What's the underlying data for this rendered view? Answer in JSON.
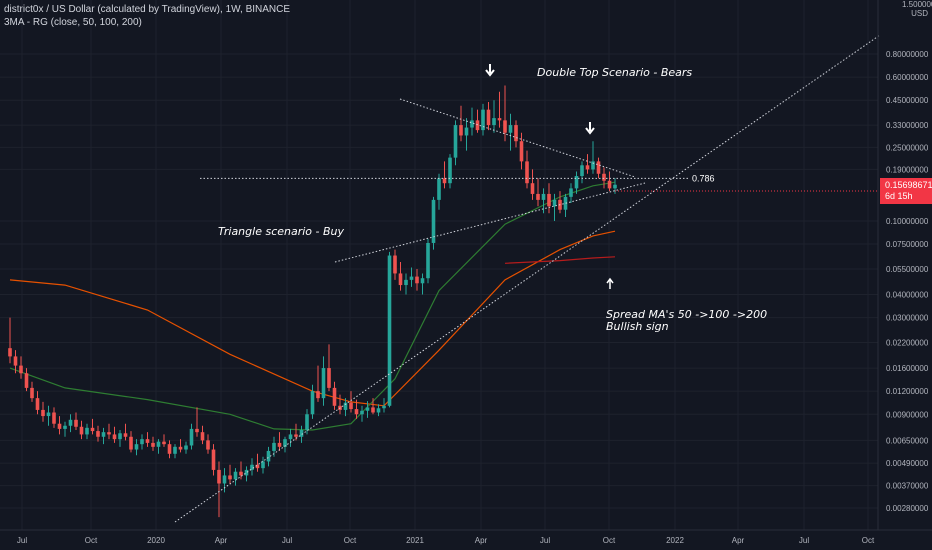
{
  "header": {
    "title": "district0x / US Dollar (calculated by TradingView), 1W, BINANCE",
    "indicator": "3MA - RG (close, 50, 100, 200)"
  },
  "price_scale": {
    "top_value": "1.50000000",
    "unit": "USD",
    "current_price": "0.15698671",
    "countdown": "6d 15h"
  },
  "annotations": {
    "double_top": "Double Top Scenario - Bears",
    "triangle": "Triangle scenario - Buy",
    "spread_line1": "Spread MA's 50 ->100 ->200",
    "spread_line2": "Bullish sign",
    "fib_level": "0.786"
  },
  "colors": {
    "background": "#131722",
    "up_candle": "#26a69a",
    "down_candle": "#ef5350",
    "ma50": "#2e7d32",
    "ma100": "#e65100",
    "ma200": "#b71c1c",
    "price_tag": "#f23645"
  },
  "chart_data": {
    "type": "candlestick",
    "scale": "log",
    "interval": "1W",
    "y_ticks": [
      "0.80000000",
      "0.60000000",
      "0.45000000",
      "0.33000000",
      "0.25000000",
      "0.19000000",
      "0.10000000",
      "0.07500000",
      "0.05500000",
      "0.04000000",
      "0.03000000",
      "0.02200000",
      "0.01600000",
      "0.01200000",
      "0.00900000",
      "0.00650000",
      "0.00490000",
      "0.00370000",
      "0.00280000"
    ],
    "x_ticks": [
      "Jul",
      "Oct",
      "2020",
      "Apr",
      "Jul",
      "Oct",
      "2021",
      "Apr",
      "Jul",
      "Oct",
      "2022",
      "Apr",
      "Jul",
      "Oct"
    ],
    "candles": [
      [
        0.0205,
        0.03,
        0.017,
        0.0185
      ],
      [
        0.0185,
        0.02,
        0.015,
        0.0165
      ],
      [
        0.0165,
        0.0185,
        0.014,
        0.015
      ],
      [
        0.015,
        0.016,
        0.012,
        0.0125
      ],
      [
        0.0125,
        0.0135,
        0.0105,
        0.011
      ],
      [
        0.011,
        0.012,
        0.009,
        0.0095
      ],
      [
        0.0095,
        0.0105,
        0.0082,
        0.0088
      ],
      [
        0.0088,
        0.01,
        0.0078,
        0.0092
      ],
      [
        0.0092,
        0.0098,
        0.0076,
        0.008
      ],
      [
        0.008,
        0.0088,
        0.007,
        0.0075
      ],
      [
        0.0075,
        0.0082,
        0.0068,
        0.0078
      ],
      [
        0.0078,
        0.009,
        0.0072,
        0.0084
      ],
      [
        0.0084,
        0.0092,
        0.0074,
        0.0077
      ],
      [
        0.0077,
        0.0083,
        0.0066,
        0.007
      ],
      [
        0.007,
        0.008,
        0.0066,
        0.0076
      ],
      [
        0.0076,
        0.0085,
        0.007,
        0.0073
      ],
      [
        0.0073,
        0.0078,
        0.0064,
        0.0068
      ],
      [
        0.0068,
        0.0076,
        0.0062,
        0.0072
      ],
      [
        0.0072,
        0.008,
        0.0066,
        0.007
      ],
      [
        0.007,
        0.0077,
        0.0063,
        0.0066
      ],
      [
        0.0066,
        0.0074,
        0.006,
        0.0071
      ],
      [
        0.0071,
        0.008,
        0.0065,
        0.0068
      ],
      [
        0.0068,
        0.0073,
        0.0056,
        0.0058
      ],
      [
        0.0058,
        0.0066,
        0.0054,
        0.0062
      ],
      [
        0.0062,
        0.007,
        0.0058,
        0.0066
      ],
      [
        0.0066,
        0.0072,
        0.006,
        0.0063
      ],
      [
        0.0063,
        0.0068,
        0.0057,
        0.006
      ],
      [
        0.006,
        0.0066,
        0.0055,
        0.0064
      ],
      [
        0.0064,
        0.007,
        0.006,
        0.0062
      ],
      [
        0.0062,
        0.0065,
        0.0052,
        0.0055
      ],
      [
        0.0055,
        0.0062,
        0.0052,
        0.006
      ],
      [
        0.006,
        0.0066,
        0.0056,
        0.0058
      ],
      [
        0.0058,
        0.0064,
        0.0055,
        0.0061
      ],
      [
        0.0061,
        0.008,
        0.0058,
        0.0075
      ],
      [
        0.0075,
        0.0098,
        0.0068,
        0.0072
      ],
      [
        0.0072,
        0.0078,
        0.0062,
        0.0065
      ],
      [
        0.0065,
        0.007,
        0.0055,
        0.0058
      ],
      [
        0.0058,
        0.0062,
        0.0042,
        0.0045
      ],
      [
        0.0045,
        0.005,
        0.0025,
        0.0038
      ],
      [
        0.0038,
        0.0046,
        0.0034,
        0.0042
      ],
      [
        0.0042,
        0.0048,
        0.0038,
        0.004
      ],
      [
        0.004,
        0.0046,
        0.0037,
        0.0044
      ],
      [
        0.0044,
        0.005,
        0.004,
        0.0042
      ],
      [
        0.0042,
        0.0047,
        0.0039,
        0.0045
      ],
      [
        0.0045,
        0.0052,
        0.0042,
        0.0048
      ],
      [
        0.0048,
        0.0055,
        0.0044,
        0.0046
      ],
      [
        0.0046,
        0.0053,
        0.0043,
        0.005
      ],
      [
        0.005,
        0.006,
        0.0047,
        0.0057
      ],
      [
        0.0057,
        0.0068,
        0.0053,
        0.0063
      ],
      [
        0.0063,
        0.0072,
        0.0057,
        0.006
      ],
      [
        0.006,
        0.0068,
        0.0056,
        0.0066
      ],
      [
        0.0066,
        0.0075,
        0.006,
        0.007
      ],
      [
        0.007,
        0.008,
        0.0065,
        0.0068
      ],
      [
        0.0068,
        0.0078,
        0.0063,
        0.0074
      ],
      [
        0.0074,
        0.0096,
        0.007,
        0.009
      ],
      [
        0.009,
        0.013,
        0.0085,
        0.012
      ],
      [
        0.012,
        0.0165,
        0.0105,
        0.011
      ],
      [
        0.011,
        0.0185,
        0.01,
        0.016
      ],
      [
        0.016,
        0.0215,
        0.012,
        0.0125
      ],
      [
        0.0125,
        0.0135,
        0.0095,
        0.01
      ],
      [
        0.01,
        0.0115,
        0.009,
        0.0095
      ],
      [
        0.0095,
        0.011,
        0.0088,
        0.0104
      ],
      [
        0.0104,
        0.012,
        0.0092,
        0.0096
      ],
      [
        0.0096,
        0.0108,
        0.0085,
        0.009
      ],
      [
        0.009,
        0.01,
        0.0082,
        0.0094
      ],
      [
        0.0094,
        0.0106,
        0.0086,
        0.0098
      ],
      [
        0.0098,
        0.011,
        0.009,
        0.0092
      ],
      [
        0.0092,
        0.0102,
        0.0088,
        0.0097
      ],
      [
        0.0097,
        0.011,
        0.0092,
        0.01
      ],
      [
        0.01,
        0.068,
        0.0098,
        0.065
      ],
      [
        0.065,
        0.07,
        0.048,
        0.052
      ],
      [
        0.052,
        0.06,
        0.042,
        0.045
      ],
      [
        0.045,
        0.052,
        0.04,
        0.048
      ],
      [
        0.048,
        0.056,
        0.044,
        0.05
      ],
      [
        0.05,
        0.055,
        0.042,
        0.046
      ],
      [
        0.046,
        0.052,
        0.04,
        0.049
      ],
      [
        0.049,
        0.08,
        0.046,
        0.076
      ],
      [
        0.076,
        0.135,
        0.07,
        0.13
      ],
      [
        0.13,
        0.18,
        0.115,
        0.17
      ],
      [
        0.17,
        0.21,
        0.15,
        0.16
      ],
      [
        0.16,
        0.23,
        0.15,
        0.22
      ],
      [
        0.22,
        0.35,
        0.2,
        0.33
      ],
      [
        0.33,
        0.42,
        0.27,
        0.29
      ],
      [
        0.29,
        0.36,
        0.24,
        0.32
      ],
      [
        0.32,
        0.41,
        0.29,
        0.35
      ],
      [
        0.35,
        0.4,
        0.3,
        0.31
      ],
      [
        0.31,
        0.43,
        0.29,
        0.4
      ],
      [
        0.4,
        0.44,
        0.31,
        0.33
      ],
      [
        0.33,
        0.45,
        0.3,
        0.36
      ],
      [
        0.36,
        0.5,
        0.32,
        0.35
      ],
      [
        0.35,
        0.54,
        0.27,
        0.3
      ],
      [
        0.3,
        0.38,
        0.24,
        0.33
      ],
      [
        0.33,
        0.35,
        0.25,
        0.27
      ],
      [
        0.27,
        0.3,
        0.19,
        0.21
      ],
      [
        0.21,
        0.24,
        0.15,
        0.16
      ],
      [
        0.16,
        0.19,
        0.13,
        0.14
      ],
      [
        0.14,
        0.17,
        0.12,
        0.13
      ],
      [
        0.13,
        0.15,
        0.11,
        0.14
      ],
      [
        0.14,
        0.16,
        0.11,
        0.12
      ],
      [
        0.12,
        0.14,
        0.1,
        0.13
      ],
      [
        0.13,
        0.145,
        0.11,
        0.115
      ],
      [
        0.115,
        0.14,
        0.105,
        0.135
      ],
      [
        0.135,
        0.16,
        0.125,
        0.15
      ],
      [
        0.15,
        0.185,
        0.14,
        0.175
      ],
      [
        0.175,
        0.21,
        0.16,
        0.2
      ],
      [
        0.2,
        0.23,
        0.18,
        0.19
      ],
      [
        0.19,
        0.27,
        0.18,
        0.21
      ],
      [
        0.21,
        0.22,
        0.17,
        0.18
      ],
      [
        0.18,
        0.195,
        0.15,
        0.165
      ],
      [
        0.165,
        0.185,
        0.145,
        0.15
      ],
      [
        0.15,
        0.17,
        0.14,
        0.157
      ]
    ],
    "ma50": [
      [
        0,
        0.016
      ],
      [
        10,
        0.0125
      ],
      [
        25,
        0.0108
      ],
      [
        40,
        0.009
      ],
      [
        48,
        0.0075
      ],
      [
        55,
        0.0074
      ],
      [
        62,
        0.008
      ],
      [
        70,
        0.014
      ],
      [
        78,
        0.042
      ],
      [
        90,
        0.096
      ],
      [
        100,
        0.135
      ],
      [
        106,
        0.155
      ],
      [
        110,
        0.162
      ]
    ],
    "ma100": [
      [
        0,
        0.048
      ],
      [
        10,
        0.045
      ],
      [
        25,
        0.033
      ],
      [
        40,
        0.019
      ],
      [
        55,
        0.012
      ],
      [
        62,
        0.0105
      ],
      [
        68,
        0.01
      ],
      [
        78,
        0.02
      ],
      [
        90,
        0.048
      ],
      [
        100,
        0.07
      ],
      [
        106,
        0.083
      ],
      [
        110,
        0.088
      ]
    ],
    "ma200": [
      [
        90,
        0.059
      ],
      [
        100,
        0.061
      ],
      [
        106,
        0.063
      ],
      [
        110,
        0.064
      ]
    ],
    "fib_value": 0.17
  }
}
